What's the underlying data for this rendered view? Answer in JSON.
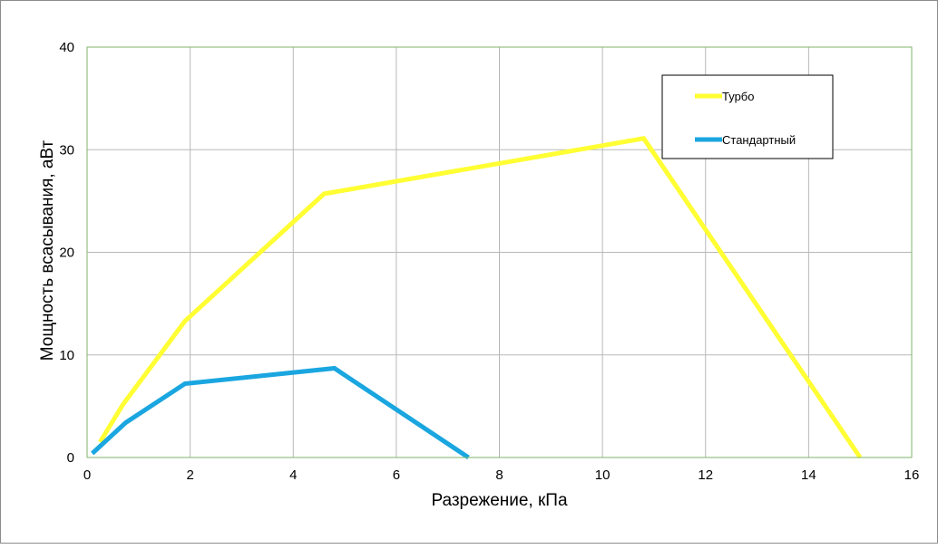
{
  "chart_data": {
    "type": "line",
    "title": "",
    "xlabel": "Разрежение, кПа",
    "ylabel": "Мощность всасывания, аВт",
    "xlim": [
      0,
      16
    ],
    "ylim": [
      0,
      40
    ],
    "x_ticks": [
      0,
      2,
      4,
      6,
      8,
      10,
      12,
      14,
      16
    ],
    "y_ticks": [
      0,
      10,
      20,
      30,
      40
    ],
    "grid": true,
    "legend_position": "top-right",
    "colors": {
      "grid": "#b8b8b8",
      "plot_border": "#7fb56a"
    },
    "series": [
      {
        "name": "Турбо",
        "color": "#ffff33",
        "points": [
          [
            0.25,
            1.5
          ],
          [
            0.7,
            5.2
          ],
          [
            1.9,
            13.3
          ],
          [
            4.6,
            25.7
          ],
          [
            10.8,
            31.1
          ],
          [
            15.0,
            0.0
          ]
        ]
      },
      {
        "name": "Стандартный",
        "color": "#1aa6e0",
        "points": [
          [
            0.1,
            0.4
          ],
          [
            0.75,
            3.4
          ],
          [
            1.9,
            7.2
          ],
          [
            4.8,
            8.7
          ],
          [
            7.4,
            0.0
          ]
        ]
      }
    ]
  }
}
